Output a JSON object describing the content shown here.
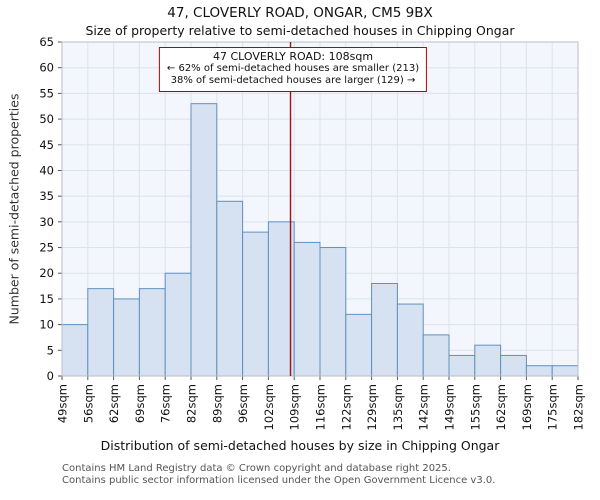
{
  "title": "47, CLOVERLY ROAD, ONGAR, CM5 9BX",
  "subtitle": "Size of property relative to semi-detached houses in Chipping Ongar",
  "chart_data": {
    "type": "bar",
    "title": "47, CLOVERLY ROAD, ONGAR, CM5 9BX",
    "subtitle": "Size of property relative to semi-detached houses in Chipping Ongar",
    "xlabel": "Distribution of semi-detached houses by size in Chipping Ongar",
    "ylabel": "Number of semi-detached properties",
    "categories": [
      "49sqm",
      "56sqm",
      "62sqm",
      "69sqm",
      "76sqm",
      "82sqm",
      "89sqm",
      "96sqm",
      "102sqm",
      "109sqm",
      "116sqm",
      "122sqm",
      "129sqm",
      "135sqm",
      "142sqm",
      "149sqm",
      "155sqm",
      "162sqm",
      "169sqm",
      "175sqm",
      "182sqm"
    ],
    "bin_edges_sqm": [
      49,
      56,
      62,
      69,
      76,
      82,
      89,
      96,
      102,
      109,
      116,
      122,
      129,
      135,
      142,
      149,
      155,
      162,
      169,
      175,
      182
    ],
    "values": [
      10,
      17,
      15,
      17,
      20,
      53,
      34,
      28,
      30,
      26,
      25,
      12,
      18,
      14,
      8,
      4,
      6,
      4,
      2,
      2
    ],
    "ylim": [
      0,
      65
    ],
    "ytick_step": 5,
    "grid": true,
    "legend": "none",
    "marker": {
      "value_sqm": 108,
      "label": "47 CLOVERLY ROAD: 108sqm"
    },
    "annotation": {
      "line1": "47 CLOVERLY ROAD: 108sqm",
      "line2": "← 62% of semi-detached houses are smaller (213)",
      "line3": "38% of semi-detached houses are larger (129) →"
    },
    "colors": {
      "bar_fill": "#d6e2f2",
      "bar_stroke": "#6090c0",
      "plot_bg": "#f3f6fc",
      "grid": "#dce2ee",
      "spine": "#b8bdc9",
      "marker_line": "#a01010",
      "annotation_border": "#bb0000"
    }
  },
  "footer": {
    "line1": "Contains HM Land Registry data © Crown copyright and database right 2025.",
    "line2": "Contains public sector information licensed under the Open Government Licence v3.0."
  }
}
